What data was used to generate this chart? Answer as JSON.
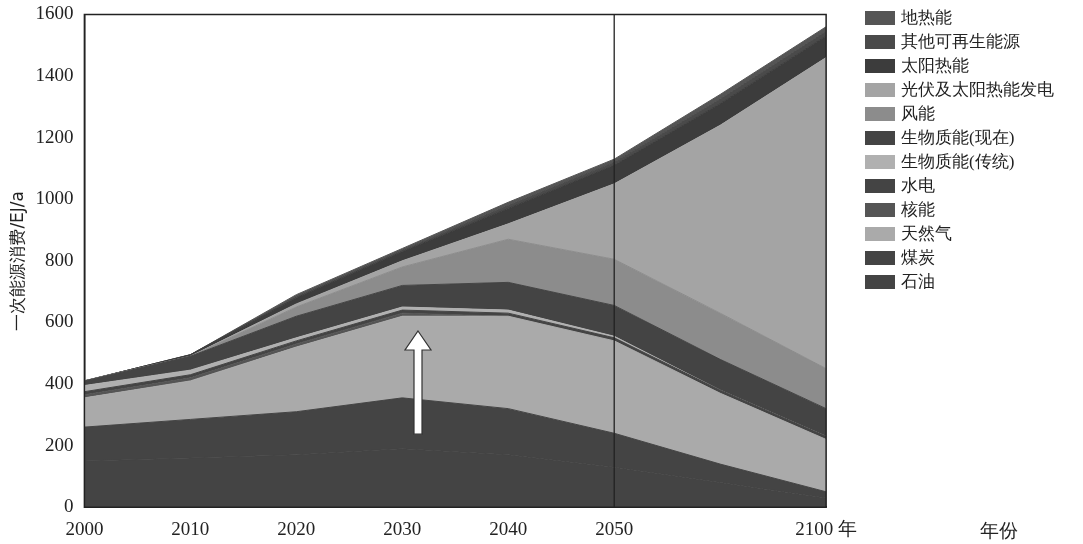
{
  "chart_data": {
    "type": "area",
    "stacked": true,
    "annotations": [
      "年份"
    ],
    "ylabel": "一次能源消费/EJ/a",
    "ref_lines": [
      {
        "axis": "x",
        "value": "2050",
        "color": "#222222",
        "line_style": "solid"
      }
    ],
    "categories": [
      "2000",
      "2010",
      "2020",
      "2030",
      "2040",
      "2050",
      null,
      "2100 年"
    ],
    "ylim": [
      0,
      1600
    ],
    "yticks": [
      0,
      200,
      400,
      600,
      800,
      1000,
      1200,
      1400,
      1600
    ],
    "grid": false,
    "legend": "right",
    "series": [
      {
        "name": "石油",
        "color": "#444444",
        "values": [
          150,
          160,
          170,
          190,
          170,
          130,
          80,
          30
        ]
      },
      {
        "name": "煤炭",
        "color": "#444444",
        "values": [
          110,
          125,
          140,
          165,
          150,
          110,
          60,
          20
        ]
      },
      {
        "name": "天然气",
        "color": "#aaaaaa",
        "values": [
          95,
          125,
          210,
          265,
          300,
          300,
          230,
          170
        ]
      },
      {
        "name": "核能",
        "color": "#555555",
        "values": [
          10,
          10,
          10,
          10,
          0,
          0,
          0,
          0
        ]
      },
      {
        "name": "水电",
        "color": "#444444",
        "values": [
          10,
          10,
          10,
          10,
          10,
          10,
          10,
          10
        ]
      },
      {
        "name": "生物质能(传统)",
        "color": "#b0b0b0",
        "values": [
          20,
          15,
          10,
          10,
          10,
          5,
          0,
          0
        ]
      },
      {
        "name": "生物质能(现在)",
        "color": "#444444",
        "values": [
          15,
          45,
          70,
          70,
          90,
          100,
          100,
          90
        ]
      },
      {
        "name": "风能",
        "color": "#8c8c8c",
        "values": [
          0,
          0,
          30,
          60,
          140,
          150,
          150,
          130
        ]
      },
      {
        "name": "光伏及太阳热能发电",
        "color": "#a4a4a4",
        "values": [
          0,
          0,
          10,
          20,
          50,
          245,
          610,
          1010
        ]
      },
      {
        "name": "太阳热能",
        "color": "#3c3c3c",
        "values": [
          0,
          5,
          20,
          30,
          50,
          60,
          70,
          70
        ]
      },
      {
        "name": "其他可再生能源",
        "color": "#4a4a4a",
        "values": [
          0,
          0,
          5,
          5,
          10,
          10,
          15,
          15
        ]
      },
      {
        "name": "地热能",
        "color": "#555555",
        "values": [
          0,
          0,
          5,
          5,
          10,
          10,
          15,
          15
        ]
      }
    ]
  }
}
